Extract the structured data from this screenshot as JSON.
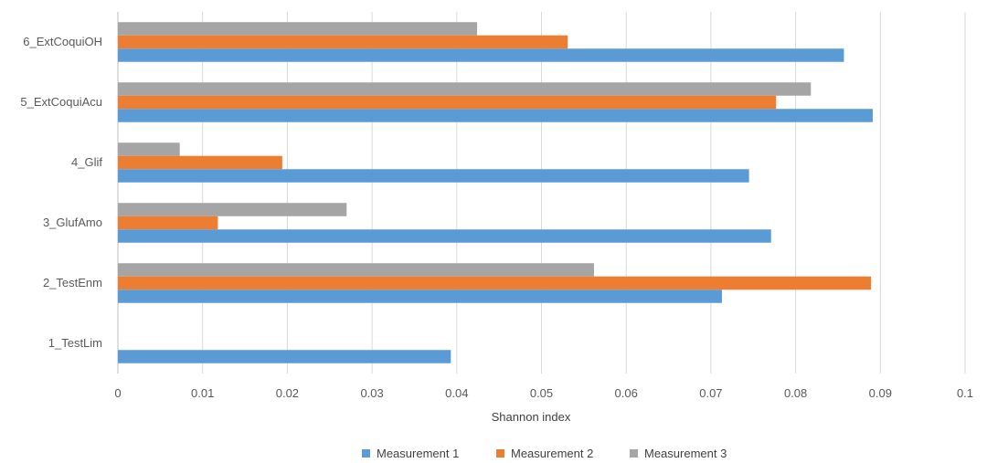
{
  "chart_data": {
    "type": "bar",
    "orientation": "horizontal",
    "categories": [
      "1_TestLim",
      "2_TestEnm",
      "3_GlufAmo",
      "4_Glif",
      "5_ExtCoquiAcu",
      "6_ExtCoquiOH"
    ],
    "series": [
      {
        "name": "Measurement 1",
        "color": "#5b9bd5",
        "values": [
          0.0393,
          0.0713,
          0.0771,
          0.0745,
          0.0891,
          0.0857
        ]
      },
      {
        "name": "Measurement 2",
        "color": "#ed7d31",
        "values": [
          0,
          0.0889,
          0.0118,
          0.0194,
          0.0777,
          0.0531
        ]
      },
      {
        "name": "Measurement 3",
        "color": "#a5a5a5",
        "values": [
          0,
          0.0562,
          0.027,
          0.0073,
          0.0818,
          0.0424
        ]
      }
    ],
    "title": "",
    "xlabel": "Shannon index",
    "ylabel": "",
    "xlim": [
      0,
      0.1
    ],
    "xticks": [
      0,
      0.01,
      0.02,
      0.03,
      0.04,
      0.05,
      0.06,
      0.07,
      0.08,
      0.09,
      0.1
    ],
    "xtick_labels": [
      "0",
      "0.01",
      "0.02",
      "0.03",
      "0.04",
      "0.05",
      "0.06",
      "0.07",
      "0.08",
      "0.09",
      "0.1"
    ],
    "grid": "vertical",
    "legend_position": "bottom"
  }
}
